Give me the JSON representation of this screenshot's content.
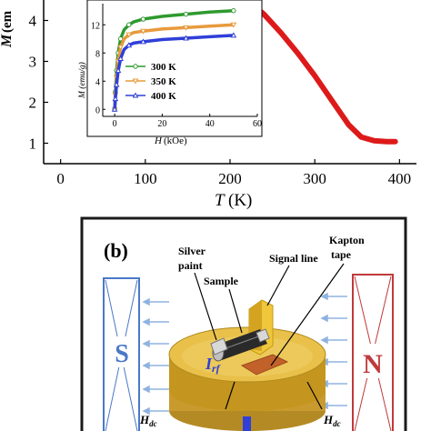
{
  "panel_a": {
    "main": {
      "ylabel_symbol": "M",
      "ylabel_unit_partial": "(em",
      "xlabel_symbol": "T",
      "xlabel_unit": "(K)",
      "y_ticks": [
        "1",
        "2",
        "3",
        "4"
      ],
      "x_ticks": [
        "0",
        "100",
        "200",
        "300",
        "400"
      ],
      "series_color": "#dd1a1a"
    },
    "inset": {
      "ylabel": "M (emu/g)",
      "xlabel_symbol": "H",
      "xlabel_unit": "(kOe)",
      "y_ticks": [
        "0",
        "4",
        "8",
        "12"
      ],
      "x_ticks": [
        "0",
        "20",
        "40",
        "60"
      ],
      "legend": [
        {
          "label": "300 K",
          "color": "#2e9a2e",
          "marker": "circle-icon"
        },
        {
          "label": "350 K",
          "color": "#e89a3c",
          "marker": "triangle-down-icon"
        },
        {
          "label": "400 K",
          "color": "#2f3fd8",
          "marker": "triangle-up-icon"
        }
      ]
    }
  },
  "chart_data": [
    {
      "type": "line",
      "xlabel": "T (K)",
      "ylabel": "M (em",
      "xlim": [
        -20,
        420
      ],
      "ylim": [
        0.5,
        4.5
      ],
      "series": [
        {
          "x": [
            220,
            240,
            260,
            280,
            300,
            320,
            340,
            355,
            370,
            385,
            395
          ],
          "values": [
            4.5,
            4.15,
            3.7,
            3.2,
            2.65,
            2.05,
            1.45,
            1.15,
            1.06,
            1.04,
            1.04
          ]
        }
      ]
    },
    {
      "type": "line",
      "xlabel": "H (kOe)",
      "ylabel": "M (emu/g)",
      "xlim": [
        -5,
        60
      ],
      "ylim": [
        -1,
        15
      ],
      "series": [
        {
          "name": "300 K",
          "x": [
            0,
            0.3,
            0.8,
            1.5,
            2.5,
            4,
            6,
            8,
            12,
            20,
            30,
            40,
            50
          ],
          "values": [
            0,
            2.5,
            5.5,
            8.0,
            10.0,
            11.3,
            12.0,
            12.4,
            12.8,
            13.2,
            13.5,
            13.8,
            14.0
          ]
        },
        {
          "name": "350 K",
          "x": [
            0,
            0.3,
            0.8,
            1.5,
            2.5,
            4,
            6,
            8,
            12,
            20,
            30,
            40,
            50
          ],
          "values": [
            0,
            2.0,
            4.5,
            6.8,
            8.8,
            10.0,
            10.6,
            10.9,
            11.1,
            11.4,
            11.6,
            11.8,
            12.0
          ]
        },
        {
          "name": "400 K",
          "x": [
            0,
            0.3,
            0.8,
            1.5,
            2.5,
            4,
            6,
            8,
            12,
            20,
            30,
            40,
            50
          ],
          "values": [
            0,
            1.5,
            3.5,
            5.5,
            7.2,
            8.5,
            9.1,
            9.4,
            9.6,
            9.9,
            10.1,
            10.3,
            10.5
          ]
        }
      ]
    }
  ],
  "panel_b": {
    "label": "(b)",
    "silver_paint": [
      "Silver",
      "paint"
    ],
    "sample": "Sample",
    "signal_line": "Signal line",
    "kapton_tape": [
      "Kapton",
      "tape"
    ],
    "magnet_left": "S",
    "magnet_right": "N",
    "current_main": "I",
    "current_sub": "rf",
    "field_main": "H",
    "field_sub": "dc",
    "magnet_left_color": "#4a78c8",
    "magnet_right_color": "#c0393b"
  }
}
